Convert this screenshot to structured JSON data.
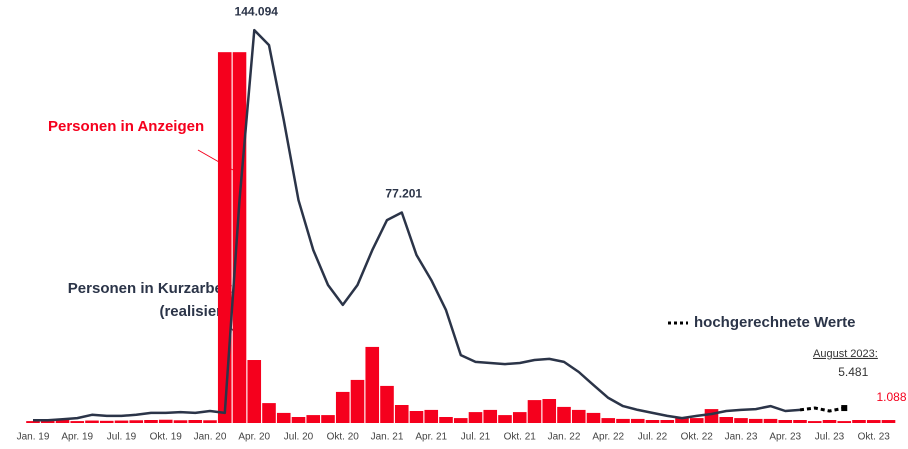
{
  "chart_data": {
    "type": "bar_line",
    "categories": [
      "Jan. 19",
      null,
      null,
      "Apr. 19",
      null,
      null,
      "Jul. 19",
      null,
      null,
      "Okt. 19",
      null,
      null,
      "Jan. 20",
      null,
      null,
      "Apr. 20",
      null,
      null,
      "Jul. 20",
      null,
      null,
      "Okt. 20",
      null,
      null,
      "Jan. 21",
      null,
      null,
      "Apr. 21",
      null,
      null,
      "Jul. 21",
      null,
      null,
      "Okt. 21",
      null,
      null,
      "Jan. 22",
      null,
      null,
      "Apr. 22",
      null,
      null,
      "Jul. 22",
      null,
      null,
      "Okt. 22",
      null,
      null,
      "Jan. 23",
      null,
      null,
      "Apr. 23",
      null,
      null,
      "Jul. 23",
      null,
      null,
      "Okt. 23",
      null
    ],
    "ylim": [
      0,
      150000
    ],
    "series": [
      {
        "name": "Personen in Anzeigen",
        "kind": "bar",
        "color": "#f5001d",
        "values": [
          700,
          1100,
          1100,
          700,
          900,
          800,
          900,
          1000,
          1100,
          1200,
          1000,
          1100,
          1000,
          136000,
          136000,
          23100,
          7300,
          3700,
          2200,
          2900,
          2900,
          11400,
          15800,
          27900,
          13600,
          6600,
          4400,
          4800,
          2200,
          1800,
          4000,
          4800,
          2900,
          4000,
          8400,
          8800,
          5900,
          4800,
          3700,
          1800,
          1500,
          1500,
          1100,
          1100,
          1800,
          1800,
          5100,
          2200,
          1800,
          1500,
          1500,
          1100,
          1100,
          700,
          1100,
          700,
          1100,
          1088,
          1088
        ],
        "value_labels": [
          null,
          null,
          null,
          null,
          null,
          null,
          null,
          null,
          null,
          null,
          null,
          null,
          null,
          null,
          null,
          null,
          null,
          null,
          null,
          null,
          null,
          null,
          null,
          null,
          null,
          null,
          null,
          null,
          null,
          null,
          null,
          null,
          null,
          null,
          null,
          null,
          null,
          null,
          null,
          null,
          null,
          null,
          null,
          null,
          null,
          null,
          null,
          null,
          null,
          null,
          null,
          null,
          null,
          null,
          null,
          null,
          null,
          null,
          "1.088"
        ]
      },
      {
        "name": "Personen in Kurzarbeit (realisiert)",
        "kind": "line",
        "color": "#2b3448",
        "values": [
          1000,
          1000,
          1400,
          1800,
          3000,
          2600,
          2600,
          3000,
          3700,
          3700,
          4000,
          3700,
          4400,
          3700,
          81700,
          144094,
          138600,
          111000,
          81700,
          63400,
          50600,
          43300,
          50600,
          63400,
          74400,
          77201,
          61600,
          52400,
          41400,
          24900,
          22400,
          22000,
          21600,
          22000,
          23100,
          23500,
          22400,
          18700,
          13900,
          9200,
          6200,
          4800,
          3700,
          2600,
          1800,
          2600,
          3300,
          4400,
          4800,
          5100,
          6200,
          4400,
          4800,
          null,
          null,
          null,
          null,
          null,
          null
        ],
        "value_labels": [
          null,
          null,
          null,
          null,
          null,
          null,
          null,
          null,
          null,
          null,
          null,
          null,
          null,
          null,
          null,
          "144.094",
          null,
          null,
          null,
          null,
          null,
          null,
          null,
          null,
          null,
          "77.201",
          null,
          null,
          null,
          null,
          null,
          null,
          null,
          null,
          null,
          null,
          null,
          null,
          null,
          null,
          null,
          null,
          null,
          null,
          null,
          null,
          null,
          null,
          null,
          null,
          null,
          null,
          null,
          null,
          null,
          null,
          null,
          null,
          null
        ]
      },
      {
        "name": "hochgerechnete Werte",
        "kind": "dotted",
        "color": "#000000",
        "values": [
          null,
          null,
          null,
          null,
          null,
          null,
          null,
          null,
          null,
          null,
          null,
          null,
          null,
          null,
          null,
          null,
          null,
          null,
          null,
          null,
          null,
          null,
          null,
          null,
          null,
          null,
          null,
          null,
          null,
          null,
          null,
          null,
          null,
          null,
          null,
          null,
          null,
          null,
          null,
          null,
          null,
          null,
          null,
          null,
          null,
          null,
          null,
          null,
          null,
          null,
          null,
          null,
          4800,
          5500,
          4400,
          5481,
          null,
          null,
          null
        ],
        "value_labels": [
          null,
          null,
          null,
          null,
          null,
          null,
          null,
          null,
          null,
          null,
          null,
          null,
          null,
          null,
          null,
          null,
          null,
          null,
          null,
          null,
          null,
          null,
          null,
          null,
          null,
          null,
          null,
          null,
          null,
          null,
          null,
          null,
          null,
          null,
          null,
          null,
          null,
          null,
          null,
          null,
          null,
          null,
          null,
          null,
          null,
          null,
          null,
          null,
          null,
          null,
          null,
          null,
          null,
          null,
          null,
          "5.481",
          null,
          null,
          null
        ]
      }
    ],
    "annotations": [
      "August 2023:"
    ]
  }
}
